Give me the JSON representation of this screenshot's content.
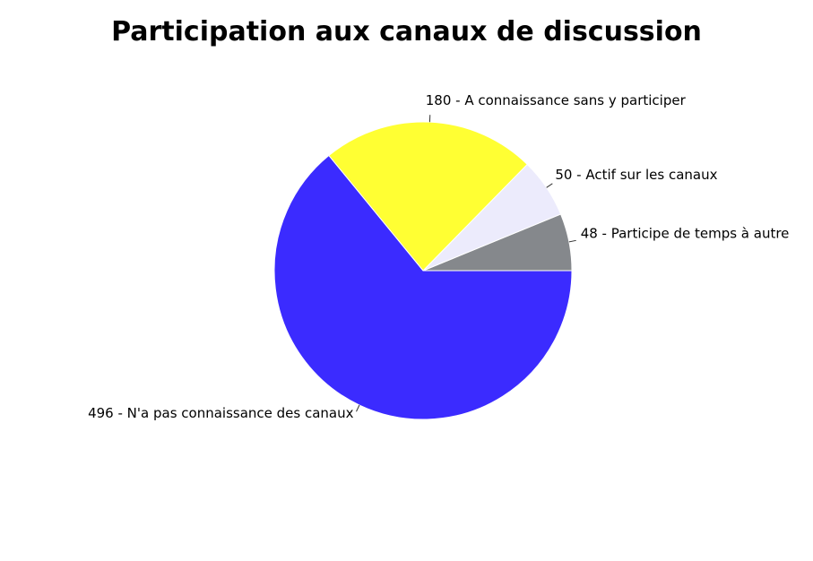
{
  "chart_data": {
    "type": "pie",
    "title": "Participation aux canaux de discussion",
    "slices": [
      {
        "label": "Participe de temps à autre",
        "value": 48,
        "display": "48 - Participe de temps à autre",
        "color": "#85888c"
      },
      {
        "label": "Actif sur les canaux",
        "value": 50,
        "display": "50 - Actif sur les canaux",
        "color": "#ecebfc"
      },
      {
        "label": "A connaissance sans y participer",
        "value": 180,
        "display": "180 - A connaissance sans y participer",
        "color": "#ffff33"
      },
      {
        "label": "N'a pas connaissance des canaux",
        "value": 496,
        "display": "496 - N'a pas connaissance des canaux",
        "color": "#3b2bff"
      }
    ],
    "start_angle_deg": 0,
    "direction": "counterclockwise",
    "legend": "none"
  }
}
